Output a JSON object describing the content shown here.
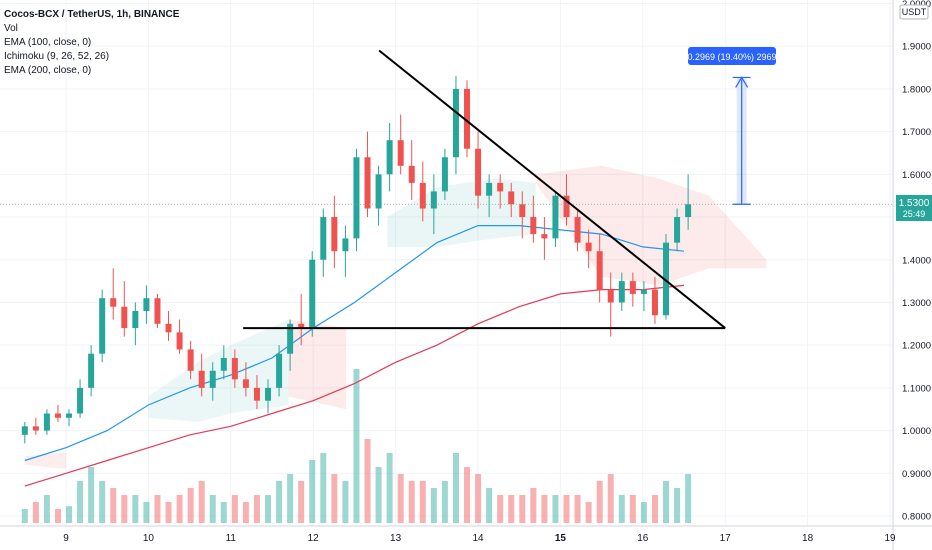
{
  "legend": {
    "title": "Cocos-BCX / TetherUS, 1h, BINANCE",
    "vol": "Vol",
    "ema100": "EMA (100, close, 0)",
    "ichimoku": "Ichimoku (9, 26, 52, 26)",
    "ema200": "EMA (200, close, 0)"
  },
  "axis": {
    "unit": "USDT",
    "price_ticks": [
      "2.0000",
      "1.9000",
      "1.8000",
      "1.7000",
      "1.6000",
      "1.5000",
      "1.4000",
      "1.3000",
      "1.2000",
      "1.1000",
      "1.0000",
      "0.9000",
      "0.8000"
    ],
    "time_ticks": [
      "9",
      "10",
      "11",
      "12",
      "13",
      "14",
      "15",
      "16",
      "17",
      "18",
      "19"
    ],
    "last_price": "1.5300",
    "countdown": "25:49"
  },
  "measure": {
    "label": "0.2969 (19.40%) 2969"
  },
  "colors": {
    "up": "#26a69a",
    "down": "#ef5350",
    "ema100": "#2196f3",
    "ema200": "#e53955",
    "accent": "#2962ff"
  },
  "chart_data": {
    "type": "candlestick",
    "title": "Cocos-BCX / TetherUS, 1h, BINANCE",
    "y_unit": "USDT",
    "ylim": [
      0.78,
      2.0
    ],
    "x_range": [
      8.5,
      19.0
    ],
    "series": [
      {
        "name": "EMA (100, close, 0)",
        "points": [
          [
            8.5,
            0.93
          ],
          [
            9.0,
            0.96
          ],
          [
            9.5,
            1.0
          ],
          [
            10.0,
            1.06
          ],
          [
            10.5,
            1.1
          ],
          [
            11.0,
            1.13
          ],
          [
            11.5,
            1.17
          ],
          [
            12.0,
            1.24
          ],
          [
            12.5,
            1.3
          ],
          [
            13.0,
            1.37
          ],
          [
            13.5,
            1.44
          ],
          [
            14.0,
            1.48
          ],
          [
            14.5,
            1.48
          ],
          [
            15.0,
            1.47
          ],
          [
            15.5,
            1.46
          ],
          [
            16.0,
            1.43
          ],
          [
            16.5,
            1.42
          ]
        ]
      },
      {
        "name": "EMA (200, close, 0)",
        "points": [
          [
            8.5,
            0.87
          ],
          [
            9.0,
            0.9
          ],
          [
            9.5,
            0.93
          ],
          [
            10.0,
            0.96
          ],
          [
            10.5,
            0.99
          ],
          [
            11.0,
            1.01
          ],
          [
            11.5,
            1.04
          ],
          [
            12.0,
            1.07
          ],
          [
            12.5,
            1.11
          ],
          [
            13.0,
            1.16
          ],
          [
            13.5,
            1.2
          ],
          [
            14.0,
            1.25
          ],
          [
            14.5,
            1.29
          ],
          [
            15.0,
            1.32
          ],
          [
            15.5,
            1.33
          ],
          [
            16.0,
            1.33
          ],
          [
            16.5,
            1.34
          ]
        ]
      }
    ],
    "ohlc": [
      [
        0.99,
        1.02,
        0.97,
        1.01
      ],
      [
        1.01,
        1.03,
        0.99,
        1.0
      ],
      [
        1.0,
        1.05,
        0.99,
        1.04
      ],
      [
        1.04,
        1.06,
        1.02,
        1.03
      ],
      [
        1.03,
        1.05,
        1.01,
        1.04
      ],
      [
        1.04,
        1.12,
        1.03,
        1.1
      ],
      [
        1.1,
        1.2,
        1.08,
        1.18
      ],
      [
        1.18,
        1.33,
        1.16,
        1.31
      ],
      [
        1.31,
        1.38,
        1.26,
        1.29
      ],
      [
        1.29,
        1.35,
        1.22,
        1.24
      ],
      [
        1.24,
        1.3,
        1.2,
        1.28
      ],
      [
        1.28,
        1.34,
        1.25,
        1.31
      ],
      [
        1.31,
        1.32,
        1.24,
        1.25
      ],
      [
        1.25,
        1.28,
        1.21,
        1.23
      ],
      [
        1.23,
        1.26,
        1.18,
        1.19
      ],
      [
        1.19,
        1.21,
        1.12,
        1.14
      ],
      [
        1.14,
        1.18,
        1.08,
        1.1
      ],
      [
        1.1,
        1.16,
        1.07,
        1.14
      ],
      [
        1.14,
        1.2,
        1.12,
        1.17
      ],
      [
        1.17,
        1.19,
        1.1,
        1.12
      ],
      [
        1.12,
        1.16,
        1.08,
        1.1
      ],
      [
        1.1,
        1.13,
        1.05,
        1.07
      ],
      [
        1.07,
        1.12,
        1.04,
        1.1
      ],
      [
        1.1,
        1.2,
        1.08,
        1.18
      ],
      [
        1.18,
        1.26,
        1.14,
        1.25
      ],
      [
        1.25,
        1.32,
        1.2,
        1.24
      ],
      [
        1.24,
        1.42,
        1.22,
        1.4
      ],
      [
        1.4,
        1.52,
        1.36,
        1.5
      ],
      [
        1.5,
        1.55,
        1.38,
        1.42
      ],
      [
        1.42,
        1.48,
        1.36,
        1.45
      ],
      [
        1.45,
        1.66,
        1.42,
        1.64
      ],
      [
        1.64,
        1.7,
        1.5,
        1.52
      ],
      [
        1.52,
        1.62,
        1.48,
        1.6
      ],
      [
        1.6,
        1.72,
        1.56,
        1.68
      ],
      [
        1.68,
        1.74,
        1.6,
        1.62
      ],
      [
        1.62,
        1.68,
        1.54,
        1.58
      ],
      [
        1.58,
        1.63,
        1.49,
        1.52
      ],
      [
        1.52,
        1.6,
        1.46,
        1.56
      ],
      [
        1.56,
        1.66,
        1.54,
        1.64
      ],
      [
        1.64,
        1.83,
        1.6,
        1.8
      ],
      [
        1.8,
        1.82,
        1.64,
        1.66
      ],
      [
        1.66,
        1.7,
        1.52,
        1.55
      ],
      [
        1.55,
        1.6,
        1.5,
        1.58
      ],
      [
        1.58,
        1.6,
        1.52,
        1.56
      ],
      [
        1.56,
        1.58,
        1.5,
        1.53
      ],
      [
        1.53,
        1.56,
        1.45,
        1.5
      ],
      [
        1.5,
        1.55,
        1.44,
        1.46
      ],
      [
        1.46,
        1.5,
        1.4,
        1.45
      ],
      [
        1.45,
        1.56,
        1.43,
        1.55
      ],
      [
        1.55,
        1.6,
        1.48,
        1.5
      ],
      [
        1.5,
        1.52,
        1.42,
        1.44
      ],
      [
        1.44,
        1.47,
        1.38,
        1.42
      ],
      [
        1.42,
        1.46,
        1.3,
        1.33
      ],
      [
        1.33,
        1.37,
        1.22,
        1.3
      ],
      [
        1.3,
        1.37,
        1.28,
        1.35
      ],
      [
        1.35,
        1.37,
        1.29,
        1.32
      ],
      [
        1.32,
        1.35,
        1.28,
        1.33
      ],
      [
        1.33,
        1.36,
        1.25,
        1.27
      ],
      [
        1.27,
        1.46,
        1.26,
        1.44
      ],
      [
        1.44,
        1.52,
        1.42,
        1.5
      ],
      [
        1.5,
        1.6,
        1.47,
        1.53
      ]
    ],
    "volume": [
      0.01,
      0.015,
      0.02,
      0.01,
      0.012,
      0.03,
      0.04,
      0.03,
      0.025,
      0.02,
      0.02,
      0.015,
      0.02,
      0.015,
      0.02,
      0.025,
      0.03,
      0.02,
      0.015,
      0.02,
      0.015,
      0.02,
      0.02,
      0.03,
      0.035,
      0.03,
      0.045,
      0.05,
      0.035,
      0.03,
      0.11,
      0.06,
      0.04,
      0.05,
      0.035,
      0.03,
      0.03,
      0.025,
      0.03,
      0.05,
      0.04,
      0.035,
      0.025,
      0.02,
      0.02,
      0.02,
      0.025,
      0.02,
      0.02,
      0.02,
      0.02,
      0.015,
      0.03,
      0.035,
      0.02,
      0.02,
      0.015,
      0.02,
      0.03,
      0.025,
      0.035
    ],
    "drawings": [
      {
        "name": "descending-trendline",
        "from": [
          12.8,
          1.89
        ],
        "to": [
          17.0,
          1.24
        ]
      },
      {
        "name": "support-line",
        "from": [
          11.15,
          1.24
        ],
        "to": [
          17.0,
          1.24
        ]
      },
      {
        "name": "price-target-measure",
        "from": [
          17.2,
          1.53
        ],
        "to": [
          17.2,
          1.8269
        ]
      }
    ]
  }
}
